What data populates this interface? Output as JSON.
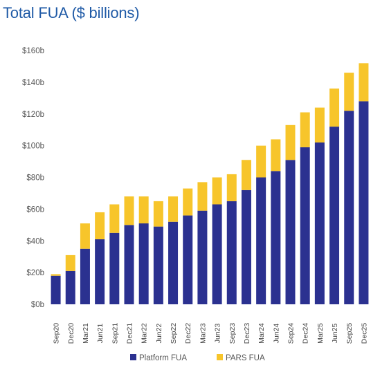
{
  "chart_data": {
    "type": "bar",
    "stacked": true,
    "title": "Total FUA ($ billions)",
    "xlabel": "",
    "ylabel": "",
    "ylim": [
      0,
      160
    ],
    "yticks": [
      0,
      20,
      40,
      60,
      80,
      100,
      120,
      140,
      160
    ],
    "ytick_labels": [
      "$0b",
      "$20b",
      "$40b",
      "$60b",
      "$80b",
      "$100b",
      "$120b",
      "$140b",
      "$160b"
    ],
    "grid": false,
    "legend_position": "bottom",
    "categories": [
      "Sep20",
      "Dec20",
      "Mar21",
      "Jun21",
      "Sep21",
      "Dec21",
      "Mar22",
      "Jun22",
      "Sep22",
      "Dec22",
      "Mar23",
      "Jun23",
      "Sep23",
      "Dec23",
      "Mar24",
      "Jun24",
      "Sep24",
      "Dec24",
      "Mar25",
      "Jun25",
      "Sep25",
      "Dec25"
    ],
    "series": [
      {
        "name": "Platform FUA",
        "color": "#2b3190",
        "values": [
          18,
          21,
          35,
          41,
          45,
          50,
          51,
          49,
          52,
          56,
          59,
          63,
          65,
          72,
          80,
          84,
          91,
          99,
          102,
          112,
          122,
          128
        ]
      },
      {
        "name": "PARS FUA",
        "color": "#f7c52b",
        "values": [
          1,
          10,
          16,
          17,
          18,
          18,
          17,
          16,
          16,
          17,
          18,
          17,
          17,
          19,
          20,
          20,
          22,
          22,
          22,
          24,
          24,
          24
        ]
      }
    ]
  }
}
